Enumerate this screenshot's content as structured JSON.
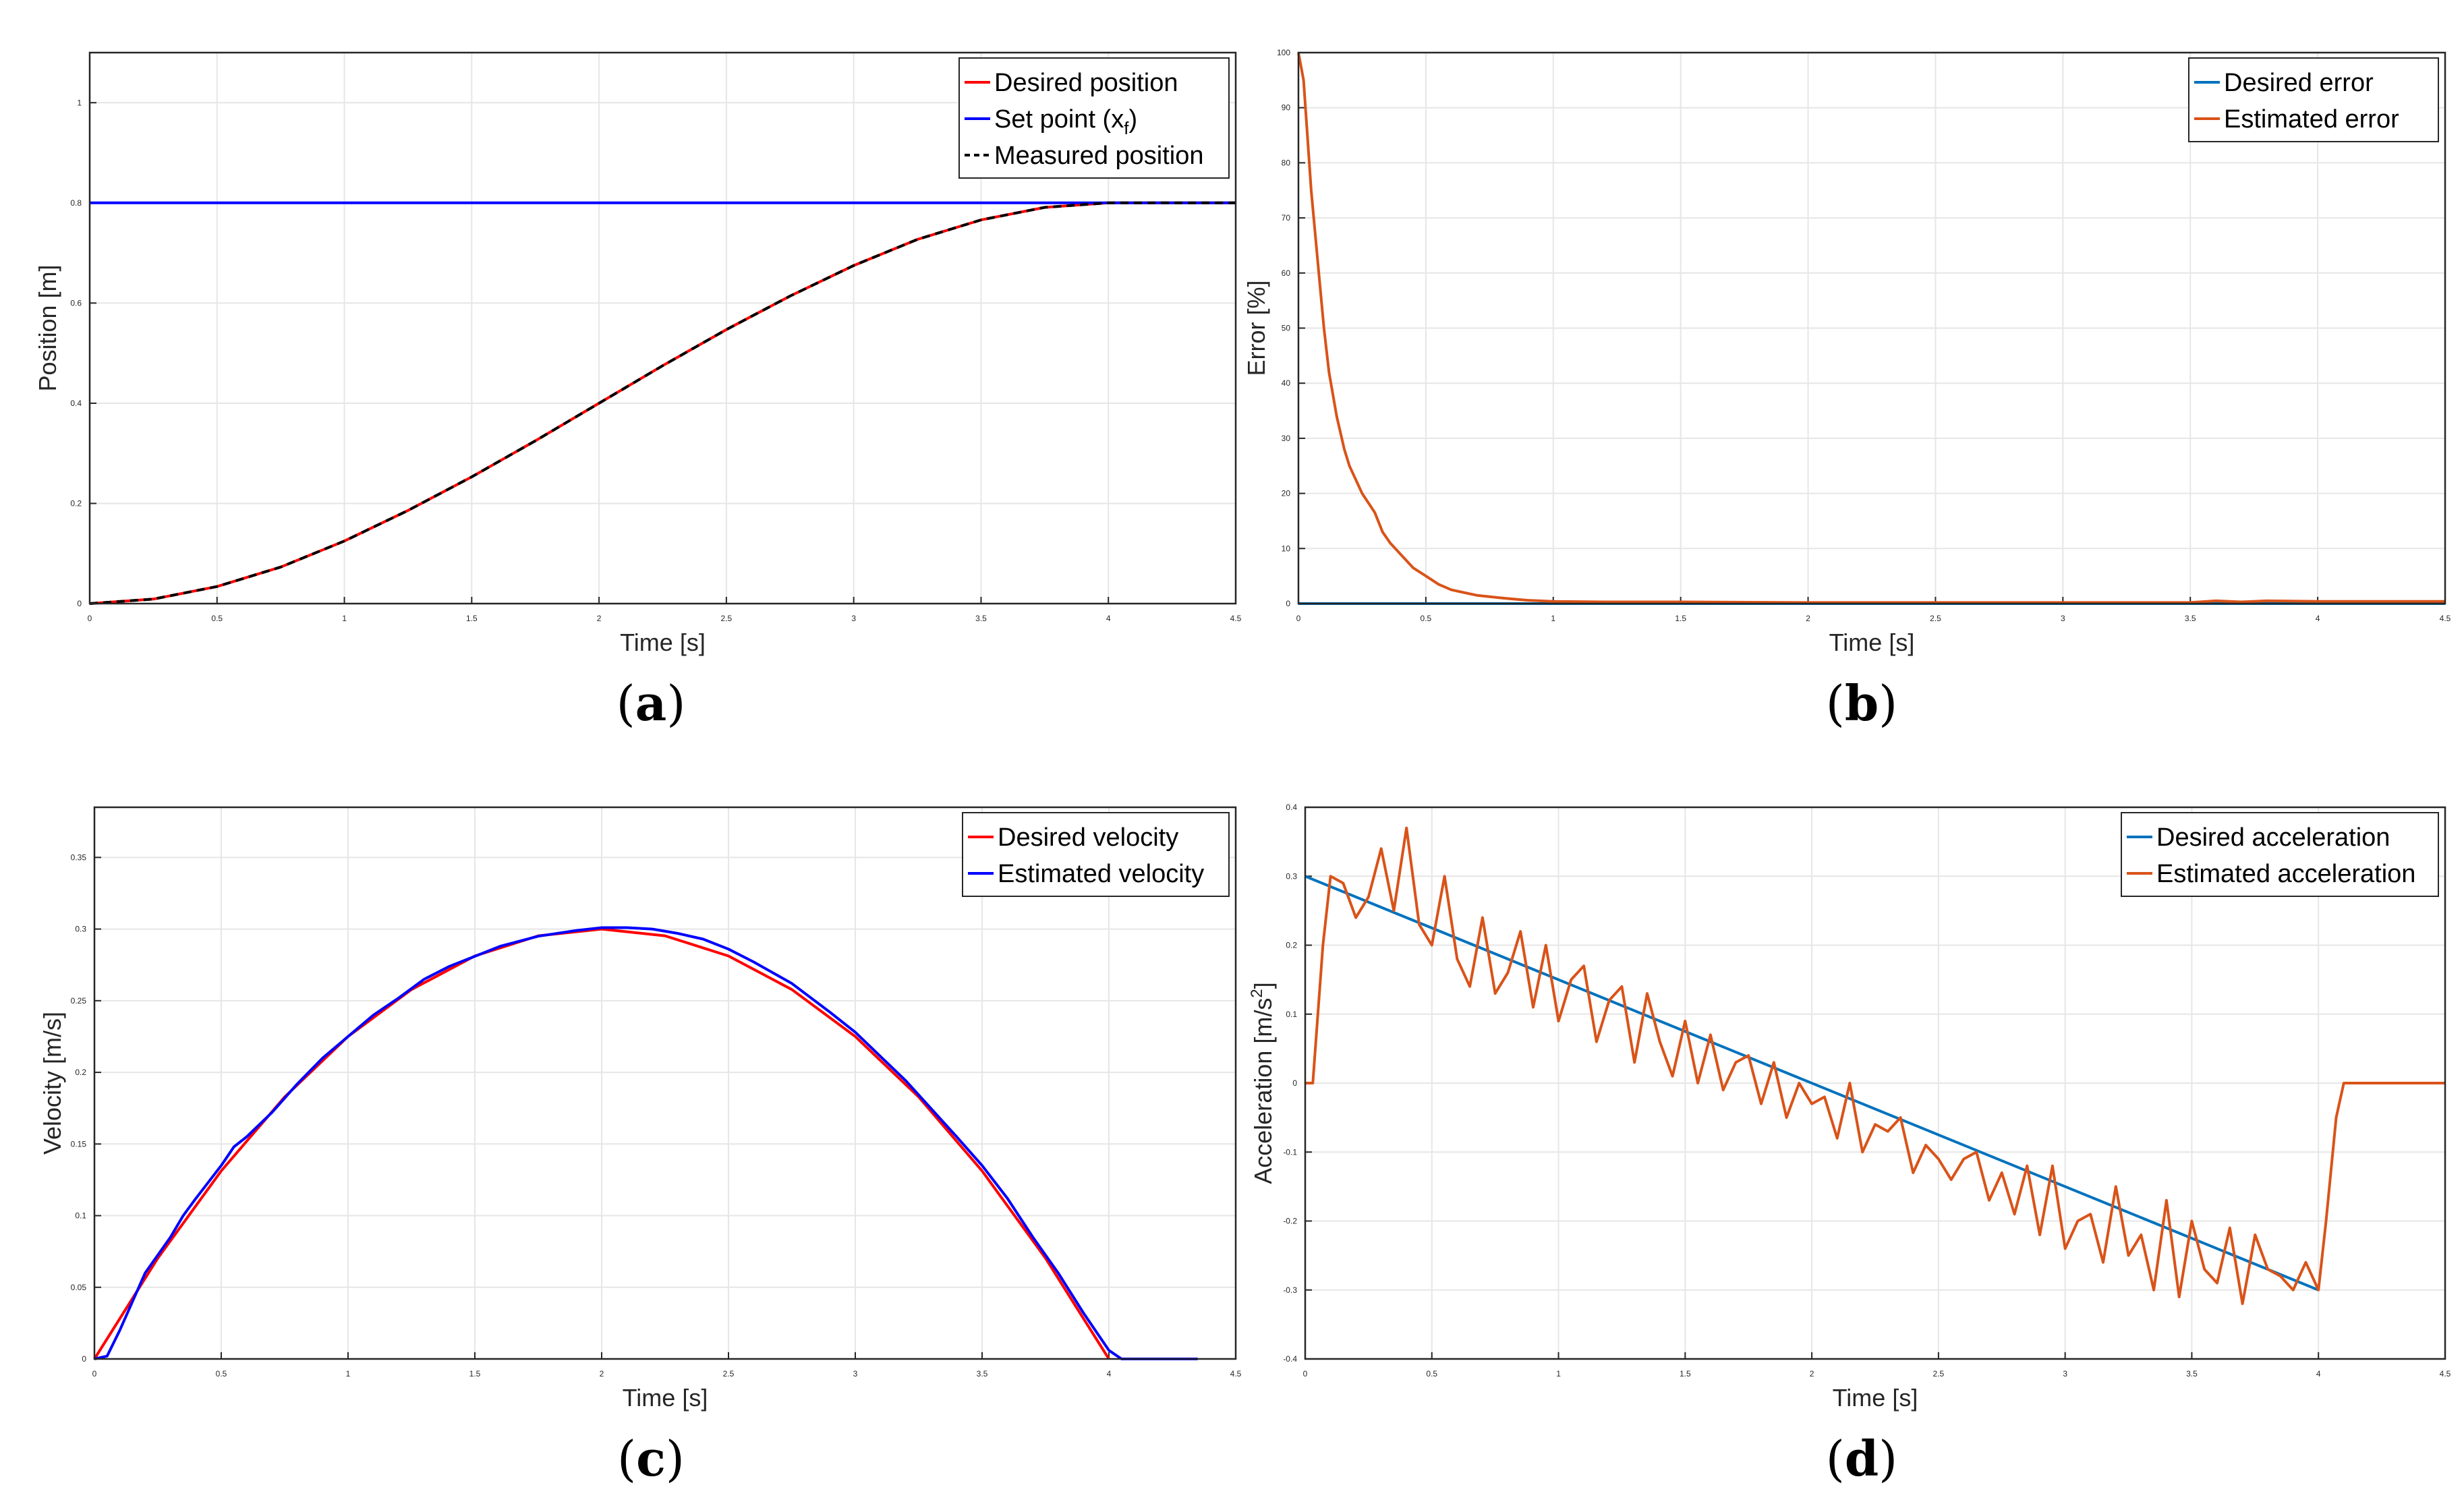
{
  "captions": [
    "a",
    "b",
    "c",
    "d"
  ],
  "chart_data": [
    {
      "type": "line",
      "title": "",
      "xlabel": "Time [s]",
      "ylabel": "Position [m]",
      "xlim": [
        0,
        4.5
      ],
      "ylim": [
        0,
        1.1
      ],
      "xticks": [
        "0",
        "0.5",
        "1",
        "1.5",
        "2",
        "2.5",
        "3",
        "3.5",
        "4",
        "4.5"
      ],
      "yticks": [
        "0",
        "0.2",
        "0.4",
        "0.6",
        "0.8",
        "1"
      ],
      "grid": true,
      "legend_position": "top-right",
      "series": [
        {
          "name": "Desired position",
          "color": "#ff0000",
          "style": "solid",
          "x": [
            0,
            0.25,
            0.5,
            0.75,
            1,
            1.25,
            1.5,
            1.75,
            2,
            2.25,
            2.5,
            2.75,
            3,
            3.25,
            3.5,
            3.75,
            4,
            4.25,
            4.5
          ],
          "y": [
            0,
            0.009,
            0.034,
            0.073,
            0.125,
            0.186,
            0.253,
            0.325,
            0.4,
            0.475,
            0.547,
            0.614,
            0.675,
            0.727,
            0.766,
            0.791,
            0.8,
            0.8,
            0.8
          ]
        },
        {
          "name": "Set point (x",
          "name_sub": "f",
          "name_tail": ")",
          "color": "#0000ff",
          "style": "solid",
          "x": [
            0,
            4.5
          ],
          "y": [
            0.8,
            0.8
          ]
        },
        {
          "name": "Measured position",
          "color": "#000000",
          "style": "dashed",
          "x": [
            0,
            0.25,
            0.5,
            0.75,
            1,
            1.25,
            1.5,
            1.75,
            2,
            2.25,
            2.5,
            2.75,
            3,
            3.25,
            3.5,
            3.75,
            4,
            4.25,
            4.5
          ],
          "y": [
            0,
            0.009,
            0.034,
            0.073,
            0.125,
            0.186,
            0.253,
            0.325,
            0.4,
            0.475,
            0.547,
            0.614,
            0.675,
            0.727,
            0.766,
            0.791,
            0.8,
            0.8,
            0.8
          ]
        }
      ]
    },
    {
      "type": "line",
      "title": "",
      "xlabel": "Time [s]",
      "ylabel": "Error [%]",
      "xlim": [
        0,
        4.5
      ],
      "ylim": [
        0,
        100
      ],
      "xticks": [
        "0",
        "0.5",
        "1",
        "1.5",
        "2",
        "2.5",
        "3",
        "3.5",
        "4",
        "4.5"
      ],
      "yticks": [
        "0",
        "10",
        "20",
        "30",
        "40",
        "50",
        "60",
        "70",
        "80",
        "90",
        "100"
      ],
      "grid": true,
      "legend_position": "top-right",
      "series": [
        {
          "name": "Desired error",
          "color": "#0072bd",
          "style": "solid",
          "x": [
            0,
            4.5
          ],
          "y": [
            0,
            0
          ]
        },
        {
          "name": "Estimated error",
          "color": "#d95319",
          "style": "solid",
          "x": [
            0,
            0.02,
            0.05,
            0.08,
            0.1,
            0.12,
            0.15,
            0.18,
            0.2,
            0.25,
            0.3,
            0.33,
            0.36,
            0.4,
            0.45,
            0.5,
            0.55,
            0.6,
            0.7,
            0.8,
            0.9,
            1.0,
            1.2,
            1.5,
            2.0,
            2.5,
            3.0,
            3.5,
            3.6,
            3.7,
            3.8,
            4.0,
            4.5
          ],
          "y": [
            100,
            95,
            75,
            60,
            50,
            42,
            34,
            28,
            25,
            20,
            16.5,
            13,
            11,
            9,
            6.5,
            5,
            3.5,
            2.5,
            1.5,
            1,
            0.6,
            0.4,
            0.3,
            0.3,
            0.2,
            0.2,
            0.2,
            0.2,
            0.5,
            0.3,
            0.5,
            0.4,
            0.4
          ]
        }
      ]
    },
    {
      "type": "line",
      "title": "",
      "xlabel": "Time [s]",
      "ylabel": "Velocity [m/s]",
      "xlim": [
        0,
        4.5
      ],
      "ylim": [
        0,
        0.385
      ],
      "xticks": [
        "0",
        "0.5",
        "1",
        "1.5",
        "2",
        "2.5",
        "3",
        "3.5",
        "4",
        "4.5"
      ],
      "yticks": [
        "0",
        "0.05",
        "0.1",
        "0.15",
        "0.2",
        "0.25",
        "0.3",
        "0.35"
      ],
      "grid": true,
      "legend_position": "top-right",
      "series": [
        {
          "name": "Desired velocity",
          "color": "#ff0000",
          "style": "solid",
          "x": [
            0,
            0.25,
            0.5,
            0.75,
            1,
            1.25,
            1.5,
            1.75,
            2,
            2.25,
            2.5,
            2.75,
            3,
            3.25,
            3.5,
            3.75,
            4
          ],
          "y": [
            0,
            0.0703,
            0.1312,
            0.1828,
            0.225,
            0.2578,
            0.2812,
            0.2953,
            0.3,
            0.2953,
            0.2812,
            0.2578,
            0.225,
            0.1828,
            0.1312,
            0.0703,
            0
          ]
        },
        {
          "name": "Estimated velocity",
          "color": "#0000ff",
          "style": "solid",
          "x": [
            0,
            0.05,
            0.1,
            0.15,
            0.2,
            0.3,
            0.35,
            0.4,
            0.5,
            0.55,
            0.6,
            0.7,
            0.75,
            0.8,
            0.9,
            1.0,
            1.1,
            1.2,
            1.3,
            1.4,
            1.5,
            1.6,
            1.75,
            1.9,
            2.0,
            2.1,
            2.2,
            2.3,
            2.4,
            2.5,
            2.6,
            2.75,
            2.9,
            3.0,
            3.2,
            3.4,
            3.5,
            3.6,
            3.7,
            3.8,
            3.9,
            4.0,
            4.05,
            4.1,
            4.2,
            4.3,
            4.35
          ],
          "y": [
            0,
            0.002,
            0.02,
            0.04,
            0.06,
            0.085,
            0.1,
            0.112,
            0.135,
            0.148,
            0.155,
            0.172,
            0.182,
            0.192,
            0.21,
            0.225,
            0.24,
            0.252,
            0.265,
            0.274,
            0.281,
            0.288,
            0.295,
            0.299,
            0.301,
            0.301,
            0.3,
            0.297,
            0.293,
            0.286,
            0.277,
            0.262,
            0.242,
            0.228,
            0.194,
            0.155,
            0.135,
            0.112,
            0.085,
            0.06,
            0.032,
            0.006,
            0,
            0,
            0,
            0,
            0
          ]
        }
      ]
    },
    {
      "type": "line",
      "title": "",
      "xlabel": "Time [s]",
      "ylabel": "Acceleration [m/s",
      "ylabel_sup": "2",
      "ylabel_tail": "]",
      "xlim": [
        0,
        4.5
      ],
      "ylim": [
        -0.4,
        0.4
      ],
      "xticks": [
        "0",
        "0.5",
        "1",
        "1.5",
        "2",
        "2.5",
        "3",
        "3.5",
        "4",
        "4.5"
      ],
      "yticks": [
        "-0.4",
        "-0.3",
        "-0.2",
        "-0.1",
        "0",
        "0.1",
        "0.2",
        "0.3",
        "0.4"
      ],
      "grid": true,
      "legend_position": "top-right",
      "series": [
        {
          "name": "Desired acceleration",
          "color": "#0072bd",
          "style": "solid",
          "x": [
            0,
            4
          ],
          "y": [
            0.3,
            -0.3
          ]
        },
        {
          "name": "Estimated acceleration",
          "color": "#d95319",
          "style": "solid",
          "x": [
            0,
            0.03,
            0.07,
            0.1,
            0.15,
            0.2,
            0.25,
            0.3,
            0.35,
            0.4,
            0.45,
            0.5,
            0.55,
            0.6,
            0.65,
            0.7,
            0.75,
            0.8,
            0.85,
            0.9,
            0.95,
            1.0,
            1.05,
            1.1,
            1.15,
            1.2,
            1.25,
            1.3,
            1.35,
            1.4,
            1.45,
            1.5,
            1.55,
            1.6,
            1.65,
            1.7,
            1.75,
            1.8,
            1.85,
            1.9,
            1.95,
            2.0,
            2.05,
            2.1,
            2.15,
            2.2,
            2.25,
            2.3,
            2.35,
            2.4,
            2.45,
            2.5,
            2.55,
            2.6,
            2.65,
            2.7,
            2.75,
            2.8,
            2.85,
            2.9,
            2.95,
            3.0,
            3.05,
            3.1,
            3.15,
            3.2,
            3.25,
            3.3,
            3.35,
            3.4,
            3.45,
            3.5,
            3.55,
            3.6,
            3.65,
            3.7,
            3.75,
            3.8,
            3.85,
            3.9,
            3.95,
            4.0,
            4.03,
            4.07,
            4.1,
            4.2,
            4.3,
            4.4,
            4.5
          ],
          "y": [
            0,
            0.0,
            0.2,
            0.3,
            0.29,
            0.24,
            0.27,
            0.34,
            0.25,
            0.37,
            0.23,
            0.2,
            0.3,
            0.18,
            0.14,
            0.24,
            0.13,
            0.16,
            0.22,
            0.11,
            0.2,
            0.09,
            0.15,
            0.17,
            0.06,
            0.12,
            0.14,
            0.03,
            0.13,
            0.06,
            0.01,
            0.09,
            0.0,
            0.07,
            -0.01,
            0.03,
            0.04,
            -0.03,
            0.03,
            -0.05,
            0.0,
            -0.03,
            -0.02,
            -0.08,
            0.0,
            -0.1,
            -0.06,
            -0.07,
            -0.05,
            -0.13,
            -0.09,
            -0.11,
            -0.14,
            -0.11,
            -0.1,
            -0.17,
            -0.13,
            -0.19,
            -0.12,
            -0.22,
            -0.12,
            -0.24,
            -0.2,
            -0.19,
            -0.26,
            -0.15,
            -0.25,
            -0.22,
            -0.3,
            -0.17,
            -0.31,
            -0.2,
            -0.27,
            -0.29,
            -0.21,
            -0.32,
            -0.22,
            -0.27,
            -0.28,
            -0.3,
            -0.26,
            -0.3,
            -0.2,
            -0.05,
            0.0,
            0.0,
            0.0,
            0.0,
            0.0
          ]
        }
      ]
    }
  ]
}
